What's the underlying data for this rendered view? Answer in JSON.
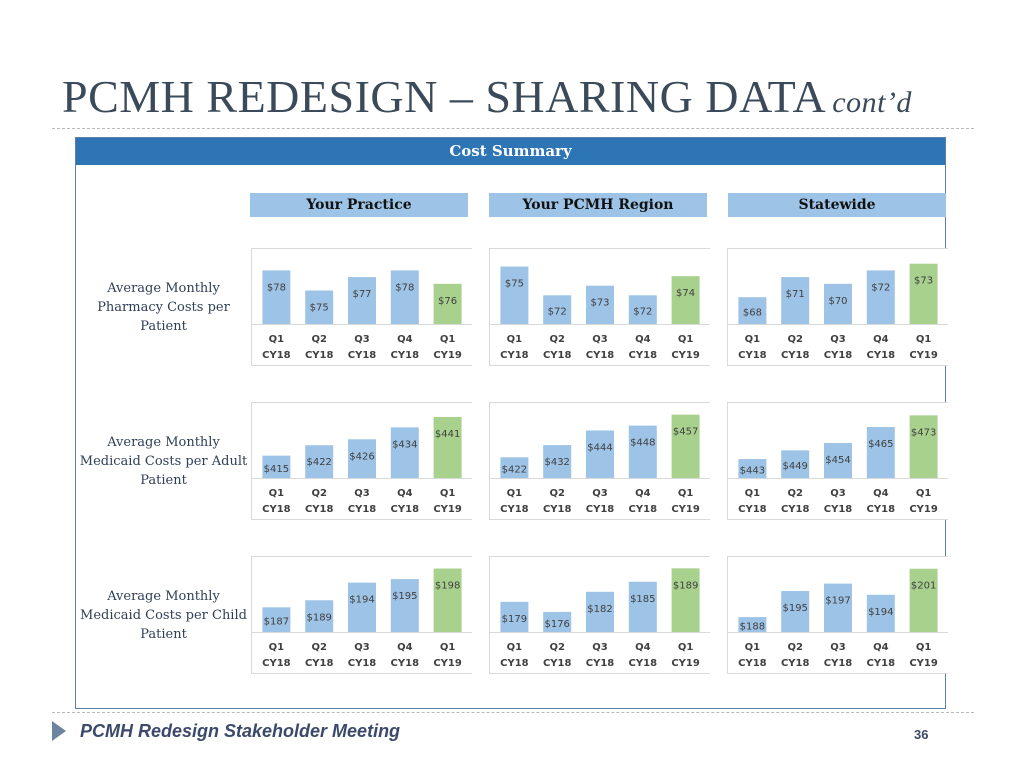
{
  "title": {
    "main": "PCMH REDESIGN – SHARING DATA",
    "subtitle": "cont’d"
  },
  "panel": {
    "header": "Cost Summary",
    "columns": [
      "Your Practice",
      "Your PCMH Region",
      "Statewide"
    ],
    "rows": [
      {
        "label": "Average Monthly Pharmacy Costs per Patient"
      },
      {
        "label": "Average Monthly Medicaid Costs per Adult Patient"
      },
      {
        "label": "Average Monthly Medicaid Costs per Child Patient"
      }
    ]
  },
  "colors": {
    "bar": "#9dc3e6",
    "bar_highlight": "#a9d18e",
    "header": "#2e75b6",
    "column_header": "#9dc3e6"
  },
  "chart_data": [
    {
      "type": "bar",
      "row": "Average Monthly Pharmacy Costs per Patient",
      "column": "Your Practice",
      "categories": [
        "Q1 CY18",
        "Q2 CY18",
        "Q3 CY18",
        "Q4 CY18",
        "Q1 CY19"
      ],
      "values": [
        78,
        75,
        77,
        78,
        76
      ],
      "labels": [
        "$78",
        "$75",
        "$77",
        "$78",
        "$76"
      ],
      "ylim": [
        70,
        80
      ],
      "highlight_index": 4
    },
    {
      "type": "bar",
      "row": "Average Monthly Pharmacy Costs per Patient",
      "column": "Your PCMH Region",
      "categories": [
        "Q1 CY18",
        "Q2 CY18",
        "Q3 CY18",
        "Q4 CY18",
        "Q1 CY19"
      ],
      "values": [
        75,
        72,
        73,
        72,
        74
      ],
      "labels": [
        "$75",
        "$72",
        "$73",
        "$72",
        "$74"
      ],
      "ylim": [
        69,
        76
      ],
      "highlight_index": 4
    },
    {
      "type": "bar",
      "row": "Average Monthly Pharmacy Costs per Patient",
      "column": "Statewide",
      "categories": [
        "Q1 CY18",
        "Q2 CY18",
        "Q3 CY18",
        "Q4 CY18",
        "Q1 CY19"
      ],
      "values": [
        68,
        71,
        70,
        72,
        73
      ],
      "labels": [
        "$68",
        "$71",
        "$70",
        "$72",
        "$73"
      ],
      "ylim": [
        64,
        74
      ],
      "highlight_index": 4
    },
    {
      "type": "bar",
      "row": "Average Monthly Medicaid Costs per Adult Patient",
      "column": "Your Practice",
      "categories": [
        "Q1 CY18",
        "Q2 CY18",
        "Q3 CY18",
        "Q4 CY18",
        "Q1 CY19"
      ],
      "values": [
        415,
        422,
        426,
        434,
        441
      ],
      "labels": [
        "$415",
        "$422",
        "$426",
        "$434",
        "$441"
      ],
      "ylim": [
        400,
        445
      ],
      "highlight_index": 4
    },
    {
      "type": "bar",
      "row": "Average Monthly Medicaid Costs per Adult Patient",
      "column": "Your PCMH Region",
      "categories": [
        "Q1 CY18",
        "Q2 CY18",
        "Q3 CY18",
        "Q4 CY18",
        "Q1 CY19"
      ],
      "values": [
        422,
        432,
        444,
        448,
        457
      ],
      "labels": [
        "$422",
        "$432",
        "$444",
        "$448",
        "$457"
      ],
      "ylim": [
        405,
        460
      ],
      "highlight_index": 4
    },
    {
      "type": "bar",
      "row": "Average Monthly Medicaid Costs per Adult Patient",
      "column": "Statewide",
      "categories": [
        "Q1 CY18",
        "Q2 CY18",
        "Q3 CY18",
        "Q4 CY18",
        "Q1 CY19"
      ],
      "values": [
        443,
        449,
        454,
        465,
        473
      ],
      "labels": [
        "$443",
        "$449",
        "$454",
        "$465",
        "$473"
      ],
      "ylim": [
        430,
        476
      ],
      "highlight_index": 4
    },
    {
      "type": "bar",
      "row": "Average Monthly Medicaid Costs per Child Patient",
      "column": "Your Practice",
      "categories": [
        "Q1 CY18",
        "Q2 CY18",
        "Q3 CY18",
        "Q4 CY18",
        "Q1 CY19"
      ],
      "values": [
        187,
        189,
        194,
        195,
        198
      ],
      "labels": [
        "$187",
        "$189",
        "$194",
        "$195",
        "$198"
      ],
      "ylim": [
        180,
        199
      ],
      "highlight_index": 4
    },
    {
      "type": "bar",
      "row": "Average Monthly Medicaid Costs per Child Patient",
      "column": "Your PCMH Region",
      "categories": [
        "Q1 CY18",
        "Q2 CY18",
        "Q3 CY18",
        "Q4 CY18",
        "Q1 CY19"
      ],
      "values": [
        179,
        176,
        182,
        185,
        189
      ],
      "labels": [
        "$179",
        "$176",
        "$182",
        "$185",
        "$189"
      ],
      "ylim": [
        170,
        190
      ],
      "highlight_index": 4
    },
    {
      "type": "bar",
      "row": "Average Monthly Medicaid Costs per Child Patient",
      "column": "Statewide",
      "categories": [
        "Q1 CY18",
        "Q2 CY18",
        "Q3 CY18",
        "Q4 CY18",
        "Q1 CY19"
      ],
      "values": [
        188,
        195,
        197,
        194,
        201
      ],
      "labels": [
        "$188",
        "$195",
        "$197",
        "$194",
        "$201"
      ],
      "ylim": [
        184,
        202
      ],
      "highlight_index": 4
    }
  ],
  "footer": {
    "text": "PCMH Redesign Stakeholder Meeting",
    "page_number": "36"
  }
}
